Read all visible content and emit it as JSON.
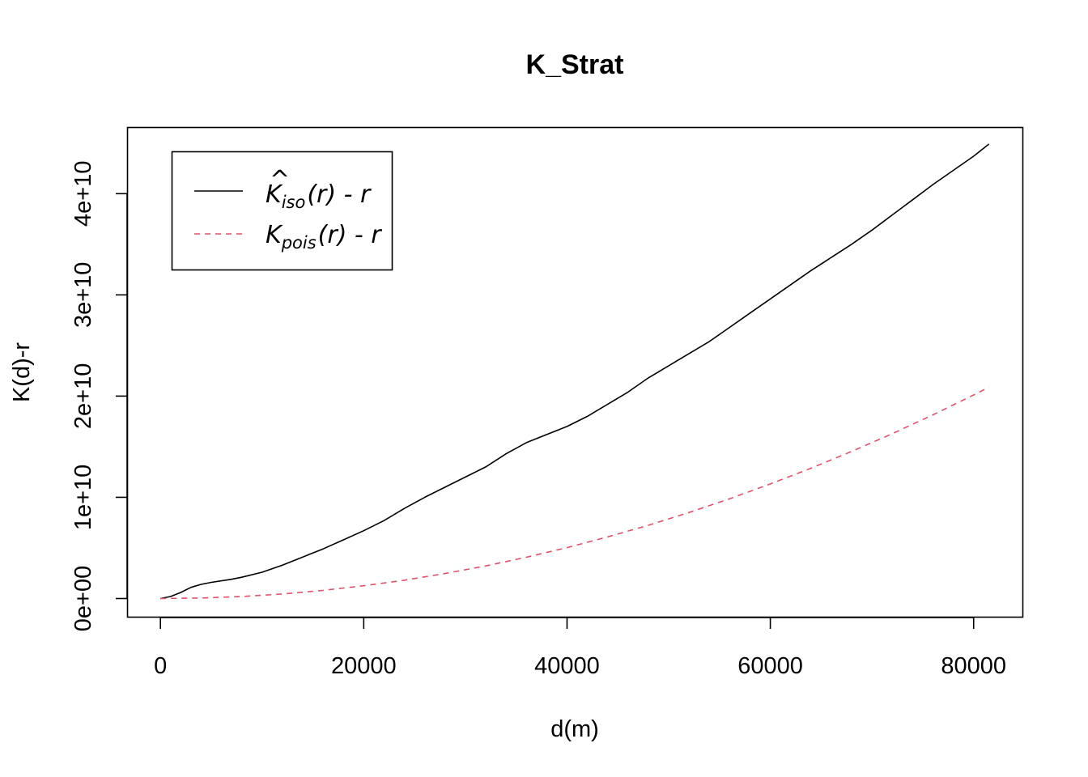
{
  "chart_data": {
    "type": "line",
    "title": "K_Strat",
    "xlabel": "d(m)",
    "ylabel": "K(d)-r",
    "xlim": [
      -3200,
      84800
    ],
    "ylim": [
      -1800000000,
      46500000000
    ],
    "x_ticks": [
      0,
      20000,
      40000,
      60000,
      80000
    ],
    "x_tick_labels": [
      "0",
      "20000",
      "40000",
      "60000",
      "80000"
    ],
    "y_ticks": [
      0,
      10000000000,
      20000000000,
      30000000000,
      40000000000
    ],
    "y_tick_labels": [
      "0e+00",
      "1e+10",
      "2e+10",
      "3e+10",
      "4e+10"
    ],
    "grid": false,
    "legend_position": "top-left",
    "legend": [
      {
        "main": "K",
        "hat": "^",
        "sub": "iso",
        "rest": "(r) - r"
      },
      {
        "main": "K",
        "hat": "",
        "sub": "pois",
        "rest": "(r) - r"
      }
    ],
    "series": [
      {
        "color": "#000000",
        "dash": "solid",
        "x": [
          0,
          1000,
          2000,
          3000,
          4000,
          5000,
          7000,
          8000,
          10000,
          12000,
          14000,
          16000,
          18000,
          20000,
          22000,
          24000,
          26000,
          28000,
          30000,
          32000,
          34000,
          36000,
          38000,
          40000,
          42000,
          44000,
          46000,
          48000,
          50000,
          52000,
          54000,
          56000,
          58000,
          60000,
          62000,
          64000,
          66000,
          68000,
          70000,
          72000,
          74000,
          76000,
          78000,
          80000,
          81500
        ],
        "y": [
          0,
          200000000,
          600000000,
          1100000000,
          1400000000,
          1600000000,
          1900000000,
          2100000000,
          2600000000,
          3300000000,
          4100000000,
          4900000000,
          5800000000,
          6700000000,
          7700000000,
          8900000000,
          10000000000,
          11000000000,
          12000000000,
          13000000000,
          14300000000,
          15400000000,
          16200000000,
          17000000000,
          18000000000,
          19200000000,
          20400000000,
          21800000000,
          23000000000,
          24200000000,
          25400000000,
          26800000000,
          28200000000,
          29600000000,
          31000000000,
          32400000000,
          33700000000,
          35000000000,
          36400000000,
          37900000000,
          39400000000,
          40900000000,
          42300000000,
          43700000000,
          44900000000
        ]
      },
      {
        "color": "#DF536B",
        "dash": "dashed",
        "x": [
          0,
          4000,
          8000,
          12000,
          16000,
          20000,
          24000,
          28000,
          32000,
          36000,
          40000,
          44000,
          48000,
          52000,
          56000,
          60000,
          64000,
          68000,
          72000,
          76000,
          80000,
          81500
        ],
        "y": [
          0,
          50000000,
          200000000,
          450000000,
          810000000,
          1260000000,
          1810000000,
          2470000000,
          3220000000,
          4080000000,
          5030000000,
          6090000000,
          7240000000,
          8500000000,
          9860000000,
          11320000000,
          12870000000,
          14530000000,
          16290000000,
          18150000000,
          20110000000,
          20870000000
        ]
      }
    ]
  }
}
